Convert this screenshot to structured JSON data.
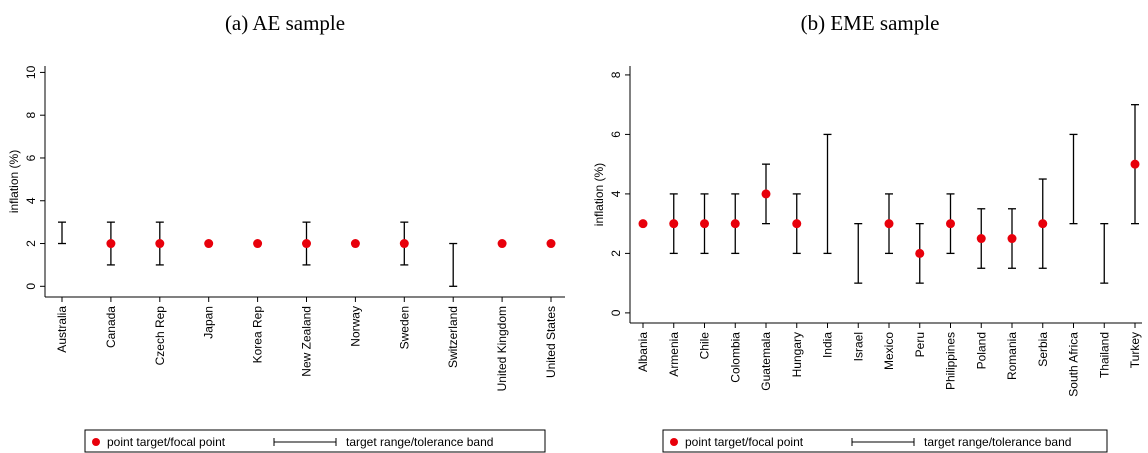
{
  "chart_data": [
    {
      "type": "range-point",
      "title": "(a) AE sample",
      "y_label": "inflation (%)",
      "categories": [
        "Australia",
        "Canada",
        "Czech Rep",
        "Japan",
        "Korea Rep",
        "New Zealand",
        "Norway",
        "Sweden",
        "Switzerland",
        "United Kingdom",
        "United States"
      ],
      "series": [
        {
          "name": "point target/focal point",
          "color": "#e8000b",
          "values": [
            null,
            2,
            2,
            2,
            2,
            2,
            2,
            2,
            null,
            2,
            2
          ]
        },
        {
          "name": "target range/tolerance band",
          "color": "#000000",
          "low": [
            2,
            1,
            1,
            null,
            null,
            1,
            null,
            1,
            0,
            null,
            null
          ],
          "high": [
            3,
            3,
            3,
            null,
            null,
            3,
            null,
            3,
            2,
            null,
            null
          ]
        }
      ],
      "ylim": [
        -0.5,
        10.3
      ],
      "yticks": [
        0,
        2,
        4,
        6,
        8,
        10
      ]
    },
    {
      "type": "range-point",
      "title": "(b) EME sample",
      "y_label": "inflation (%)",
      "categories": [
        "Albania",
        "Armenia",
        "Chile",
        "Colombia",
        "Guatemala",
        "Hungary",
        "India",
        "Israel",
        "Mexico",
        "Peru",
        "Philippines",
        "Poland",
        "Romania",
        "Serbia",
        "South Africa",
        "Thailand",
        "Turkey"
      ],
      "series": [
        {
          "name": "point target/focal point",
          "color": "#e8000b",
          "values": [
            3,
            3,
            3,
            3,
            4,
            3,
            null,
            null,
            3,
            2,
            3,
            2.5,
            2.5,
            3,
            null,
            null,
            5
          ]
        },
        {
          "name": "target range/tolerance band",
          "color": "#000000",
          "low": [
            null,
            2,
            2,
            2,
            3,
            2,
            2,
            1,
            2,
            1,
            2,
            1.5,
            1.5,
            1.5,
            3,
            1,
            3
          ],
          "high": [
            null,
            4,
            4,
            4,
            5,
            4,
            6,
            3,
            4,
            3,
            4,
            3.5,
            3.5,
            4.5,
            6,
            3,
            7
          ]
        }
      ],
      "ylim": [
        -0.34,
        8.3
      ],
      "yticks": [
        0,
        2,
        4,
        6,
        8
      ]
    }
  ]
}
